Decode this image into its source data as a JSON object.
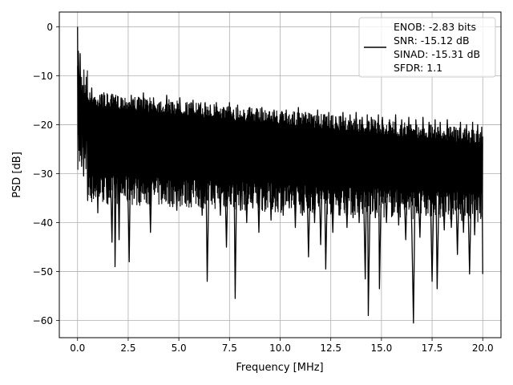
{
  "chart_data": {
    "type": "line",
    "title": "",
    "xlabel": "Frequency [MHz]",
    "ylabel": "PSD [dB]",
    "xlim": [
      -0.9,
      20.9
    ],
    "ylim": [
      -63.5,
      3.0
    ],
    "grid": true,
    "legend_position": "top-right",
    "x_ticks": [
      {
        "value": 0.0,
        "label": "0.0"
      },
      {
        "value": 2.5,
        "label": "2.5"
      },
      {
        "value": 5.0,
        "label": "5.0"
      },
      {
        "value": 7.5,
        "label": "7.5"
      },
      {
        "value": 10.0,
        "label": "10.0"
      },
      {
        "value": 12.5,
        "label": "12.5"
      },
      {
        "value": 15.0,
        "label": "15.0"
      },
      {
        "value": 17.5,
        "label": "17.5"
      },
      {
        "value": 20.0,
        "label": "20.0"
      }
    ],
    "y_ticks": [
      {
        "value": 0,
        "label": "0"
      },
      {
        "value": -10,
        "label": "−10"
      },
      {
        "value": -20,
        "label": "−20"
      },
      {
        "value": -30,
        "label": "−30"
      },
      {
        "value": -40,
        "label": "−40"
      },
      {
        "value": -50,
        "label": "−50"
      },
      {
        "value": -60,
        "label": "−60"
      }
    ],
    "legend_lines": [
      "ENOB: -2.83 bits",
      "SNR: -15.12 dB",
      "SINAD: -15.31 dB",
      "SFDR: 1.1"
    ],
    "series": [
      {
        "color": "#000000",
        "x_range": [
          0.0,
          20.0
        ],
        "points": [
          [
            0.0,
            0.0
          ],
          [
            0.02,
            -17.5
          ],
          [
            0.04,
            -5.0
          ],
          [
            0.07,
            -10.5
          ],
          [
            0.1,
            -23.0
          ],
          [
            0.13,
            -5.5
          ],
          [
            0.16,
            -16.0
          ],
          [
            0.2,
            -28.5
          ],
          [
            0.25,
            -12.0
          ],
          [
            0.3,
            -30.5
          ],
          [
            0.35,
            -14.5
          ],
          [
            0.4,
            -26.0
          ],
          [
            0.45,
            -13.0
          ],
          [
            0.5,
            -35.5
          ],
          [
            0.55,
            -15.0
          ],
          [
            0.6,
            -22.0
          ],
          [
            0.7,
            -12.5
          ],
          [
            0.8,
            -31.0
          ],
          [
            0.9,
            -15.0
          ],
          [
            1.0,
            -38.0
          ],
          [
            1.1,
            -14.0
          ],
          [
            1.2,
            -29.0
          ],
          [
            1.3,
            -13.5
          ],
          [
            1.45,
            -36.0
          ],
          [
            1.55,
            -15.5
          ],
          [
            1.7,
            -44.0
          ],
          [
            1.8,
            -15.0
          ],
          [
            1.85,
            -49.0
          ],
          [
            1.95,
            -16.0
          ],
          [
            2.05,
            -43.5
          ],
          [
            2.15,
            -14.5
          ],
          [
            2.3,
            -33.0
          ],
          [
            2.4,
            -15.5
          ],
          [
            2.55,
            -48.0
          ],
          [
            2.65,
            -14.0
          ],
          [
            2.8,
            -35.0
          ],
          [
            2.95,
            -15.0
          ],
          [
            3.1,
            -33.5
          ],
          [
            3.25,
            -13.5
          ],
          [
            3.35,
            -34.0
          ],
          [
            3.45,
            -16.0
          ],
          [
            3.6,
            -42.0
          ],
          [
            3.75,
            -14.5
          ],
          [
            3.9,
            -30.0
          ],
          [
            4.05,
            -15.5
          ],
          [
            4.2,
            -35.0
          ],
          [
            4.4,
            -14.0
          ],
          [
            4.55,
            -31.0
          ],
          [
            4.7,
            -15.5
          ],
          [
            4.9,
            -37.5
          ],
          [
            5.05,
            -14.5
          ],
          [
            5.2,
            -29.5
          ],
          [
            5.4,
            -16.0
          ],
          [
            5.55,
            -36.0
          ],
          [
            5.7,
            -15.0
          ],
          [
            5.85,
            -33.0
          ],
          [
            6.0,
            -16.5
          ],
          [
            6.15,
            -38.5
          ],
          [
            6.3,
            -15.5
          ],
          [
            6.4,
            -52.0
          ],
          [
            6.55,
            -16.0
          ],
          [
            6.7,
            -35.0
          ],
          [
            6.85,
            -15.5
          ],
          [
            7.05,
            -38.5
          ],
          [
            7.2,
            -16.5
          ],
          [
            7.35,
            -45.0
          ],
          [
            7.5,
            -15.5
          ],
          [
            7.6,
            -33.0
          ],
          [
            7.7,
            -17.0
          ],
          [
            7.78,
            -55.5
          ],
          [
            7.9,
            -16.0
          ],
          [
            8.05,
            -37.5
          ],
          [
            8.2,
            -17.0
          ],
          [
            8.35,
            -40.0
          ],
          [
            8.5,
            -16.5
          ],
          [
            8.65,
            -37.0
          ],
          [
            8.8,
            -17.5
          ],
          [
            8.95,
            -42.0
          ],
          [
            9.1,
            -16.5
          ],
          [
            9.25,
            -36.5
          ],
          [
            9.4,
            -18.0
          ],
          [
            9.55,
            -39.5
          ],
          [
            9.7,
            -17.0
          ],
          [
            9.85,
            -35.5
          ],
          [
            10.0,
            -18.0
          ],
          [
            10.15,
            -38.5
          ],
          [
            10.3,
            -17.0
          ],
          [
            10.45,
            -37.0
          ],
          [
            10.6,
            -18.0
          ],
          [
            10.75,
            -41.0
          ],
          [
            10.9,
            -16.5
          ],
          [
            11.1,
            -38.5
          ],
          [
            11.25,
            -17.5
          ],
          [
            11.4,
            -47.0
          ],
          [
            11.55,
            -18.0
          ],
          [
            11.7,
            -40.0
          ],
          [
            11.85,
            -17.0
          ],
          [
            12.0,
            -44.5
          ],
          [
            12.15,
            -18.0
          ],
          [
            12.25,
            -49.5
          ],
          [
            12.4,
            -17.5
          ],
          [
            12.6,
            -42.0
          ],
          [
            12.75,
            -18.5
          ],
          [
            12.95,
            -38.5
          ],
          [
            13.1,
            -17.5
          ],
          [
            13.3,
            -41.0
          ],
          [
            13.45,
            -18.0
          ],
          [
            13.6,
            -39.0
          ],
          [
            13.75,
            -17.5
          ],
          [
            13.9,
            -40.0
          ],
          [
            14.05,
            -18.5
          ],
          [
            14.2,
            -51.5
          ],
          [
            14.3,
            -18.0
          ],
          [
            14.35,
            -59.0
          ],
          [
            14.5,
            -18.5
          ],
          [
            14.7,
            -39.0
          ],
          [
            14.85,
            -18.0
          ],
          [
            14.9,
            -53.5
          ],
          [
            15.05,
            -18.5
          ],
          [
            15.25,
            -40.0
          ],
          [
            15.4,
            -19.0
          ],
          [
            15.55,
            -37.5
          ],
          [
            15.7,
            -18.0
          ],
          [
            15.85,
            -40.5
          ],
          [
            16.0,
            -19.0
          ],
          [
            16.2,
            -43.5
          ],
          [
            16.35,
            -18.5
          ],
          [
            16.5,
            -41.5
          ],
          [
            16.58,
            -60.5
          ],
          [
            16.7,
            -19.0
          ],
          [
            16.9,
            -43.0
          ],
          [
            17.05,
            -18.5
          ],
          [
            17.2,
            -38.5
          ],
          [
            17.35,
            -19.5
          ],
          [
            17.5,
            -52.0
          ],
          [
            17.65,
            -19.0
          ],
          [
            17.75,
            -53.5
          ],
          [
            17.9,
            -19.5
          ],
          [
            18.1,
            -41.5
          ],
          [
            18.25,
            -19.0
          ],
          [
            18.45,
            -41.0
          ],
          [
            18.6,
            -20.5
          ],
          [
            18.75,
            -46.5
          ],
          [
            18.9,
            -19.5
          ],
          [
            19.05,
            -42.0
          ],
          [
            19.2,
            -20.0
          ],
          [
            19.35,
            -50.5
          ],
          [
            19.5,
            -19.5
          ],
          [
            19.6,
            -42.5
          ],
          [
            19.75,
            -20.0
          ],
          [
            19.85,
            -38.0
          ],
          [
            19.95,
            -20.5
          ],
          [
            20.0,
            -50.5
          ]
        ]
      }
    ]
  }
}
